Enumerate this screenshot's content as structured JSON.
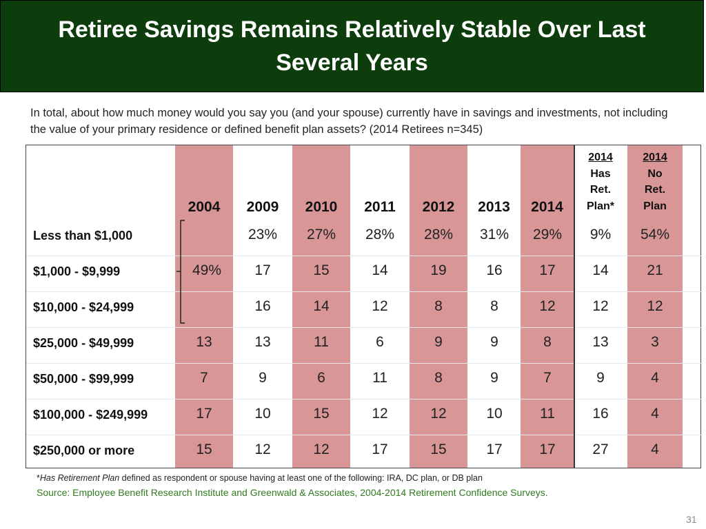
{
  "title": "Retiree Savings Remains Relatively Stable Over Last Several Years",
  "question": "In total, about how much money would you say you (and your spouse) currently have in savings and investments, not including the value of your primary residence or defined benefit plan assets? (2014 Retirees n=345)",
  "columns": [
    "2004",
    "2009",
    "2010",
    "2011",
    "2012",
    "2013",
    "2014"
  ],
  "extra_columns": [
    {
      "year": "2014",
      "line2": "Has",
      "line3": "Ret.",
      "line4": "Plan*"
    },
    {
      "year": "2014",
      "line2": "No",
      "line3": "Ret.",
      "line4": "Plan"
    }
  ],
  "rows": [
    {
      "label": "Less than $1,000",
      "values": [
        "",
        "23%",
        "27%",
        "28%",
        "28%",
        "31%",
        "29%",
        "9%",
        "54%"
      ]
    },
    {
      "label": "$1,000 - $9,999",
      "values": [
        "49%",
        "17",
        "15",
        "14",
        "19",
        "16",
        "17",
        "14",
        "21"
      ]
    },
    {
      "label": "$10,000 - $24,999",
      "values": [
        "",
        "16",
        "14",
        "12",
        "8",
        "8",
        "12",
        "12",
        "12"
      ]
    },
    {
      "label": "$25,000 - $49,999",
      "values": [
        "13",
        "13",
        "11",
        "6",
        "9",
        "9",
        "8",
        "13",
        "3"
      ]
    },
    {
      "label": "$50,000 - $99,999",
      "values": [
        "7",
        "9",
        "6",
        "11",
        "8",
        "9",
        "7",
        "9",
        "4"
      ]
    },
    {
      "label": "$100,000 - $249,999",
      "values": [
        "17",
        "10",
        "15",
        "12",
        "12",
        "10",
        "11",
        "16",
        "4"
      ]
    },
    {
      "label": "$250,000 or more",
      "values": [
        "15",
        "12",
        "12",
        "17",
        "15",
        "17",
        "17",
        "27",
        "4"
      ]
    }
  ],
  "footnote": {
    "italic": "Has Retirement Plan",
    "rest": " defined as respondent or spouse having at least one of the following: IRA, DC plan, or DB plan"
  },
  "source": "Source:  Employee Benefit Research Institute and Greenwald & Associates, 2004-2014 Retirement Confidence Surveys.",
  "page_number": "31",
  "colors": {
    "title_bg": "#0d3d0d",
    "shade": "#d99696",
    "source": "#2f7a1f"
  }
}
